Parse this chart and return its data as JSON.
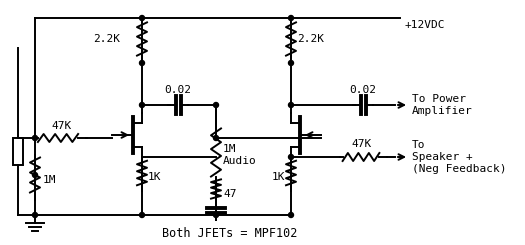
{
  "bg_color": "#ffffff",
  "line_color": "#000000",
  "figsize": [
    5.25,
    2.45
  ],
  "dpi": 100,
  "labels": {
    "vdc": "+12VDC",
    "r1": "2.2K",
    "r2": "2.2K",
    "c1": "0.02",
    "c2": "0.02",
    "r3": "47K",
    "r4": "1M",
    "r5": "1K",
    "r6": "47",
    "r7": "1M\nAudio",
    "r8": "1K",
    "r9": "47K",
    "jfet_label": "Both JFETs = MPF102",
    "out1": "To Power\nAmplifier",
    "out2": "To\nSpeaker +\n(Neg Feedback)"
  }
}
